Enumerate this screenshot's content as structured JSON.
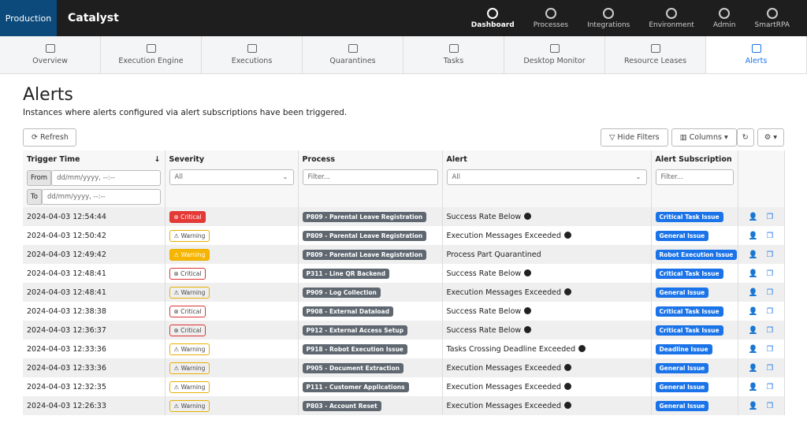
{
  "header": {
    "environment": "Production",
    "brand": "Catalyst",
    "nav": [
      "Dashboard",
      "Processes",
      "Integrations",
      "Environment",
      "Admin",
      "SmartRPA"
    ],
    "active_nav": 0
  },
  "tabs": {
    "items": [
      "Overview",
      "Execution Engine",
      "Executions",
      "Quarantines",
      "Tasks",
      "Desktop Monitor",
      "Resource Leases",
      "Alerts"
    ],
    "active": 7
  },
  "page": {
    "title": "Alerts",
    "description": "Instances where alerts configured via alert subscriptions have been triggered."
  },
  "toolbar": {
    "refresh": "Refresh",
    "hide_filters": "Hide Filters",
    "columns": "Columns"
  },
  "table": {
    "columns": [
      "Trigger Time",
      "Severity",
      "Process",
      "Alert",
      "Alert Subscription"
    ],
    "filters": {
      "from_label": "From",
      "from_placeholder": "dd/mm/yyyy, --:--",
      "to_label": "To",
      "to_placeholder": "dd/mm/yyyy, --:--",
      "severity": "All",
      "process": "Filter...",
      "alert": "All",
      "subscription": "Filter..."
    },
    "rows": [
      {
        "time": "2024-04-03 12:54:44",
        "severity": "Critical",
        "highlight": true,
        "process": "P809 - Parental Leave Registration",
        "alert": "Success Rate Below",
        "info": true,
        "subscription": "Critical Task Issue"
      },
      {
        "time": "2024-04-03 12:50:42",
        "severity": "Warning",
        "highlight": false,
        "process": "P809 - Parental Leave Registration",
        "alert": "Execution Messages Exceeded",
        "info": true,
        "subscription": "General Issue"
      },
      {
        "time": "2024-04-03 12:49:42",
        "severity": "Warning",
        "highlight": true,
        "process": "P809 - Parental Leave Registration",
        "alert": "Process Part Quarantined",
        "info": false,
        "subscription": "Robot Execution Issue"
      },
      {
        "time": "2024-04-03 12:48:41",
        "severity": "Critical",
        "highlight": false,
        "process": "P311 - Line QR Backend",
        "alert": "Success Rate Below",
        "info": true,
        "subscription": "Critical Task Issue"
      },
      {
        "time": "2024-04-03 12:48:41",
        "severity": "Warning",
        "highlight": false,
        "process": "P909 - Log Collection",
        "alert": "Execution Messages Exceeded",
        "info": true,
        "subscription": "General Issue"
      },
      {
        "time": "2024-04-03 12:38:38",
        "severity": "Critical",
        "highlight": false,
        "process": "P908 - External Dataload",
        "alert": "Success Rate Below",
        "info": true,
        "subscription": "Critical Task Issue"
      },
      {
        "time": "2024-04-03 12:36:37",
        "severity": "Critical",
        "highlight": false,
        "process": "P912 - External Access Setup",
        "alert": "Success Rate Below",
        "info": true,
        "subscription": "Critical Task Issue"
      },
      {
        "time": "2024-04-03 12:33:36",
        "severity": "Warning",
        "highlight": false,
        "process": "P918 - Robot Execution Issue",
        "alert": "Tasks Crossing Deadline Exceeded",
        "info": true,
        "subscription": "Deadline Issue"
      },
      {
        "time": "2024-04-03 12:33:36",
        "severity": "Warning",
        "highlight": false,
        "process": "P905 - Document Extraction",
        "alert": "Execution Messages Exceeded",
        "info": true,
        "subscription": "General Issue"
      },
      {
        "time": "2024-04-03 12:32:35",
        "severity": "Warning",
        "highlight": false,
        "process": "P111 - Customer Applications",
        "alert": "Execution Messages Exceeded",
        "info": true,
        "subscription": "General Issue"
      },
      {
        "time": "2024-04-03 12:26:33",
        "severity": "Warning",
        "highlight": false,
        "process": "P803 - Account Reset",
        "alert": "Execution Messages Exceeded",
        "info": true,
        "subscription": "General Issue"
      }
    ]
  }
}
